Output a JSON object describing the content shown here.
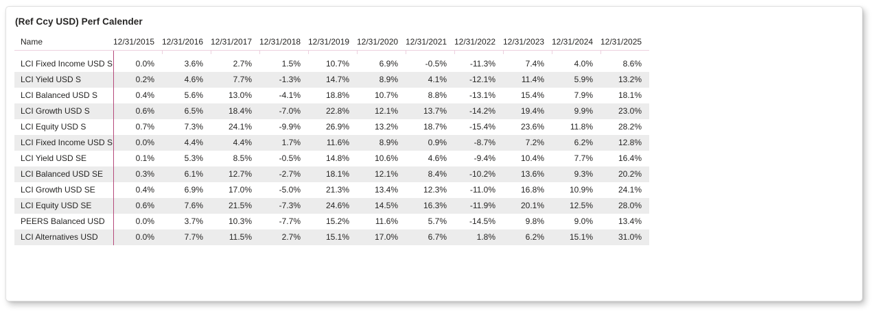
{
  "visual": {
    "title": "(Ref Ccy USD) Perf Calender"
  },
  "colors": {
    "name_column_separator": "#b5487a",
    "header_gridline": "#ecd0de",
    "alt_row_background": "#ececec",
    "text": "#252423",
    "card_border": "#e1e1e1"
  },
  "chart_data": {
    "type": "table",
    "title": "(Ref Ccy USD) Perf Calender",
    "columns": [
      "Name",
      "12/31/2015",
      "12/31/2016",
      "12/31/2017",
      "12/31/2018",
      "12/31/2019",
      "12/31/2020",
      "12/31/2021",
      "12/31/2022",
      "12/31/2023",
      "12/31/2024",
      "12/31/2025"
    ],
    "rows": [
      {
        "name": "LCI Fixed Income USD S",
        "values": [
          "0.0%",
          "3.6%",
          "2.7%",
          "1.5%",
          "10.7%",
          "6.9%",
          "-0.5%",
          "-11.3%",
          "7.4%",
          "4.0%",
          "8.6%"
        ]
      },
      {
        "name": "LCI Yield USD S",
        "values": [
          "0.2%",
          "4.6%",
          "7.7%",
          "-1.3%",
          "14.7%",
          "8.9%",
          "4.1%",
          "-12.1%",
          "11.4%",
          "5.9%",
          "13.2%"
        ]
      },
      {
        "name": "LCI Balanced USD S",
        "values": [
          "0.4%",
          "5.6%",
          "13.0%",
          "-4.1%",
          "18.8%",
          "10.7%",
          "8.8%",
          "-13.1%",
          "15.4%",
          "7.9%",
          "18.1%"
        ]
      },
      {
        "name": "LCI Growth USD S",
        "values": [
          "0.6%",
          "6.5%",
          "18.4%",
          "-7.0%",
          "22.8%",
          "12.1%",
          "13.7%",
          "-14.2%",
          "19.4%",
          "9.9%",
          "23.0%"
        ]
      },
      {
        "name": "LCI Equity USD S",
        "values": [
          "0.7%",
          "7.3%",
          "24.1%",
          "-9.9%",
          "26.9%",
          "13.2%",
          "18.7%",
          "-15.4%",
          "23.6%",
          "11.8%",
          "28.2%"
        ]
      },
      {
        "name": "LCI Fixed Income USD SE",
        "values": [
          "0.0%",
          "4.4%",
          "4.4%",
          "1.7%",
          "11.6%",
          "8.9%",
          "0.9%",
          "-8.7%",
          "7.2%",
          "6.2%",
          "12.8%"
        ]
      },
      {
        "name": "LCI Yield USD SE",
        "values": [
          "0.1%",
          "5.3%",
          "8.5%",
          "-0.5%",
          "14.8%",
          "10.6%",
          "4.6%",
          "-9.4%",
          "10.4%",
          "7.7%",
          "16.4%"
        ]
      },
      {
        "name": "LCI Balanced USD SE",
        "values": [
          "0.3%",
          "6.1%",
          "12.7%",
          "-2.7%",
          "18.1%",
          "12.1%",
          "8.4%",
          "-10.2%",
          "13.6%",
          "9.3%",
          "20.2%"
        ]
      },
      {
        "name": "LCI Growth USD SE",
        "values": [
          "0.4%",
          "6.9%",
          "17.0%",
          "-5.0%",
          "21.3%",
          "13.4%",
          "12.3%",
          "-11.0%",
          "16.8%",
          "10.9%",
          "24.1%"
        ]
      },
      {
        "name": "LCI Equity USD SE",
        "values": [
          "0.6%",
          "7.6%",
          "21.5%",
          "-7.3%",
          "24.6%",
          "14.5%",
          "16.3%",
          "-11.9%",
          "20.1%",
          "12.5%",
          "28.0%"
        ]
      },
      {
        "name": "PEERS Balanced USD",
        "values": [
          "0.0%",
          "3.7%",
          "10.3%",
          "-7.7%",
          "15.2%",
          "11.6%",
          "5.7%",
          "-14.5%",
          "9.8%",
          "9.0%",
          "13.4%"
        ]
      },
      {
        "name": "LCI Alternatives USD",
        "values": [
          "0.0%",
          "7.7%",
          "11.5%",
          "2.7%",
          "15.1%",
          "17.0%",
          "6.7%",
          "1.8%",
          "6.2%",
          "15.1%",
          "31.0%"
        ]
      }
    ],
    "layout_hints": {
      "alternating_row_shading": true,
      "name_column_vertical_separator": true,
      "header_bottom_rule": true,
      "value_alignment": "right"
    }
  }
}
